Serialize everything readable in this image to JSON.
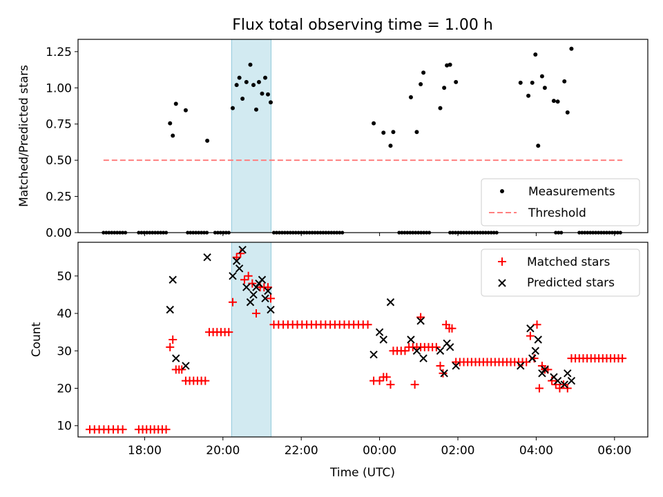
{
  "chart_data": [
    {
      "type": "scatter",
      "title": "Flux total observing time = 1.00 h",
      "xlabel": "",
      "ylabel": "Matched/Predicted stars",
      "xlim": [
        16.3,
        30.85
      ],
      "ylim": [
        0,
        1.335
      ],
      "yticks": [
        0,
        0.25,
        0.5,
        0.75,
        1.0,
        1.25
      ],
      "ytick_labels": [
        "0.00",
        "0.25",
        "0.50",
        "0.75",
        "1.00",
        "1.25"
      ],
      "highlight_span": {
        "x0": 20.22,
        "x1": 21.23
      },
      "legend": {
        "placement": "lower-right",
        "entries": [
          "Measurements",
          "Threshold"
        ]
      },
      "series": [
        {
          "name": "Measurements",
          "marker": "dot",
          "points": [
            [
              18.65,
              0.755
            ],
            [
              18.72,
              0.67
            ],
            [
              18.8,
              0.89
            ],
            [
              19.05,
              0.845
            ],
            [
              19.6,
              0.635
            ],
            [
              20.25,
              0.86
            ],
            [
              20.35,
              1.02
            ],
            [
              20.42,
              1.07
            ],
            [
              20.5,
              0.925
            ],
            [
              20.6,
              1.04
            ],
            [
              20.7,
              1.16
            ],
            [
              20.78,
              1.02
            ],
            [
              20.85,
              0.85
            ],
            [
              20.92,
              1.04
            ],
            [
              21.0,
              0.96
            ],
            [
              21.08,
              1.07
            ],
            [
              21.15,
              0.955
            ],
            [
              21.22,
              0.9
            ],
            [
              23.85,
              0.755
            ],
            [
              24.1,
              0.69
            ],
            [
              24.28,
              0.6
            ],
            [
              24.35,
              0.695
            ],
            [
              24.8,
              0.935
            ],
            [
              24.95,
              0.695
            ],
            [
              25.05,
              1.025
            ],
            [
              25.12,
              1.105
            ],
            [
              25.55,
              0.86
            ],
            [
              25.65,
              1.0
            ],
            [
              25.72,
              1.155
            ],
            [
              25.8,
              1.16
            ],
            [
              25.95,
              1.04
            ],
            [
              27.6,
              1.035
            ],
            [
              27.8,
              0.945
            ],
            [
              27.9,
              1.035
            ],
            [
              27.98,
              1.23
            ],
            [
              28.05,
              0.6
            ],
            [
              28.15,
              1.08
            ],
            [
              28.22,
              1.0
            ],
            [
              28.45,
              0.91
            ],
            [
              28.55,
              0.905
            ],
            [
              28.72,
              1.045
            ],
            [
              28.8,
              0.83
            ],
            [
              28.9,
              1.27
            ]
          ],
          "zero_runs": [
            [
              16.95,
              17.55
            ],
            [
              17.85,
              18.6
            ],
            [
              19.1,
              19.6
            ],
            [
              19.8,
              20.15
            ],
            [
              21.3,
              23.1
            ],
            [
              24.5,
              25.3
            ],
            [
              25.8,
              27.0
            ],
            [
              28.5,
              28.7
            ],
            [
              29.1,
              30.15
            ]
          ]
        },
        {
          "name": "Threshold",
          "style": "dashed",
          "color": "#ff7f7f",
          "x": [
            16.95,
            30.2
          ],
          "y": [
            0.5,
            0.5
          ]
        }
      ]
    },
    {
      "type": "scatter",
      "title": "",
      "xlabel": "Time (UTC)",
      "ylabel": "Count",
      "xlim": [
        16.3,
        30.85
      ],
      "ylim": [
        7,
        59
      ],
      "yticks": [
        10,
        20,
        30,
        40,
        50
      ],
      "ytick_labels": [
        "10",
        "20",
        "30",
        "40",
        "50"
      ],
      "xticks": [
        18,
        20,
        22,
        24,
        26,
        28,
        30
      ],
      "xtick_labels": [
        "18:00",
        "20:00",
        "22:00",
        "00:00",
        "02:00",
        "04:00",
        "06:00"
      ],
      "highlight_span": {
        "x0": 20.22,
        "x1": 21.23
      },
      "legend": {
        "placement": "upper-right",
        "entries": [
          "Matched stars",
          "Predicted stars"
        ]
      },
      "series": [
        {
          "name": "Matched stars",
          "marker": "plus",
          "color": "#ff0000",
          "points": [
            [
              16.6,
              9
            ],
            [
              16.72,
              9
            ],
            [
              16.84,
              9
            ],
            [
              16.96,
              9
            ],
            [
              17.08,
              9
            ],
            [
              17.2,
              9
            ],
            [
              17.32,
              9
            ],
            [
              17.44,
              9
            ],
            [
              17.85,
              9
            ],
            [
              17.95,
              9
            ],
            [
              18.05,
              9
            ],
            [
              18.15,
              9
            ],
            [
              18.25,
              9
            ],
            [
              18.35,
              9
            ],
            [
              18.45,
              9
            ],
            [
              18.55,
              9
            ],
            [
              18.65,
              31
            ],
            [
              18.72,
              33
            ],
            [
              18.8,
              25
            ],
            [
              18.88,
              25
            ],
            [
              18.95,
              25
            ],
            [
              19.05,
              22
            ],
            [
              19.15,
              22
            ],
            [
              19.25,
              22
            ],
            [
              19.35,
              22
            ],
            [
              19.45,
              22
            ],
            [
              19.55,
              22
            ],
            [
              19.65,
              35
            ],
            [
              19.75,
              35
            ],
            [
              19.85,
              35
            ],
            [
              19.95,
              35
            ],
            [
              20.05,
              35
            ],
            [
              20.15,
              35
            ],
            [
              20.25,
              43
            ],
            [
              20.35,
              55
            ],
            [
              20.45,
              56
            ],
            [
              20.55,
              49
            ],
            [
              20.65,
              50
            ],
            [
              20.75,
              48
            ],
            [
              20.85,
              40
            ],
            [
              20.95,
              47
            ],
            [
              21.05,
              47
            ],
            [
              21.15,
              47
            ],
            [
              21.22,
              44
            ],
            [
              21.3,
              37
            ],
            [
              21.42,
              37
            ],
            [
              21.54,
              37
            ],
            [
              21.66,
              37
            ],
            [
              21.78,
              37
            ],
            [
              21.9,
              37
            ],
            [
              22.02,
              37
            ],
            [
              22.14,
              37
            ],
            [
              22.26,
              37
            ],
            [
              22.38,
              37
            ],
            [
              22.5,
              37
            ],
            [
              22.62,
              37
            ],
            [
              22.74,
              37
            ],
            [
              22.86,
              37
            ],
            [
              22.98,
              37
            ],
            [
              23.1,
              37
            ],
            [
              23.22,
              37
            ],
            [
              23.34,
              37
            ],
            [
              23.46,
              37
            ],
            [
              23.58,
              37
            ],
            [
              23.7,
              37
            ],
            [
              23.85,
              22
            ],
            [
              24.0,
              22
            ],
            [
              24.1,
              23
            ],
            [
              24.18,
              23
            ],
            [
              24.28,
              21
            ],
            [
              24.35,
              30
            ],
            [
              24.45,
              30
            ],
            [
              24.55,
              30
            ],
            [
              24.65,
              30
            ],
            [
              24.75,
              31
            ],
            [
              24.85,
              31
            ],
            [
              24.95,
              31
            ],
            [
              25.05,
              31
            ],
            [
              25.15,
              31
            ],
            [
              25.25,
              31
            ],
            [
              25.35,
              31
            ],
            [
              25.45,
              31
            ],
            [
              24.9,
              21
            ],
            [
              25.05,
              39
            ],
            [
              25.55,
              26
            ],
            [
              25.62,
              24
            ],
            [
              25.7,
              37
            ],
            [
              25.78,
              36
            ],
            [
              25.85,
              36
            ],
            [
              25.95,
              27
            ],
            [
              26.05,
              27
            ],
            [
              26.15,
              27
            ],
            [
              26.25,
              27
            ],
            [
              26.35,
              27
            ],
            [
              26.45,
              27
            ],
            [
              26.55,
              27
            ],
            [
              26.65,
              27
            ],
            [
              26.75,
              27
            ],
            [
              26.85,
              27
            ],
            [
              26.95,
              27
            ],
            [
              27.05,
              27
            ],
            [
              27.15,
              27
            ],
            [
              27.25,
              27
            ],
            [
              27.35,
              27
            ],
            [
              27.45,
              27
            ],
            [
              27.55,
              27
            ],
            [
              27.65,
              27
            ],
            [
              27.75,
              27
            ],
            [
              27.85,
              34
            ],
            [
              27.95,
              28
            ],
            [
              28.02,
              37
            ],
            [
              28.08,
              20
            ],
            [
              28.15,
              26
            ],
            [
              28.22,
              25
            ],
            [
              28.3,
              25
            ],
            [
              28.4,
              22
            ],
            [
              28.5,
              21
            ],
            [
              28.6,
              20
            ],
            [
              28.7,
              21
            ],
            [
              28.8,
              20
            ],
            [
              28.9,
              28
            ],
            [
              29.0,
              28
            ],
            [
              29.1,
              28
            ],
            [
              29.2,
              28
            ],
            [
              29.3,
              28
            ],
            [
              29.4,
              28
            ],
            [
              29.5,
              28
            ],
            [
              29.6,
              28
            ],
            [
              29.7,
              28
            ],
            [
              29.8,
              28
            ],
            [
              29.9,
              28
            ],
            [
              30.0,
              28
            ],
            [
              30.1,
              28
            ],
            [
              30.2,
              28
            ]
          ]
        },
        {
          "name": "Predicted stars",
          "marker": "x",
          "color": "#000000",
          "points": [
            [
              18.65,
              41
            ],
            [
              18.72,
              49
            ],
            [
              18.8,
              28
            ],
            [
              19.05,
              26
            ],
            [
              19.6,
              55
            ],
            [
              20.25,
              50
            ],
            [
              20.35,
              54
            ],
            [
              20.42,
              52
            ],
            [
              20.5,
              57
            ],
            [
              20.6,
              47
            ],
            [
              20.7,
              43
            ],
            [
              20.78,
              45
            ],
            [
              20.85,
              47
            ],
            [
              20.92,
              48
            ],
            [
              21.0,
              49
            ],
            [
              21.08,
              44
            ],
            [
              21.15,
              46
            ],
            [
              21.22,
              41
            ],
            [
              23.85,
              29
            ],
            [
              24.1,
              33
            ],
            [
              24.28,
              43
            ],
            [
              24.0,
              35
            ],
            [
              24.8,
              33
            ],
            [
              24.95,
              30
            ],
            [
              25.05,
              38
            ],
            [
              25.12,
              28
            ],
            [
              25.55,
              30
            ],
            [
              25.65,
              24
            ],
            [
              25.72,
              32
            ],
            [
              25.8,
              31
            ],
            [
              25.95,
              26
            ],
            [
              27.6,
              26
            ],
            [
              27.85,
              36
            ],
            [
              27.9,
              28
            ],
            [
              27.98,
              30
            ],
            [
              28.05,
              33
            ],
            [
              28.15,
              24
            ],
            [
              28.22,
              25
            ],
            [
              28.45,
              23
            ],
            [
              28.55,
              22
            ],
            [
              28.72,
              21
            ],
            [
              28.8,
              24
            ],
            [
              28.9,
              22
            ]
          ]
        }
      ]
    }
  ]
}
